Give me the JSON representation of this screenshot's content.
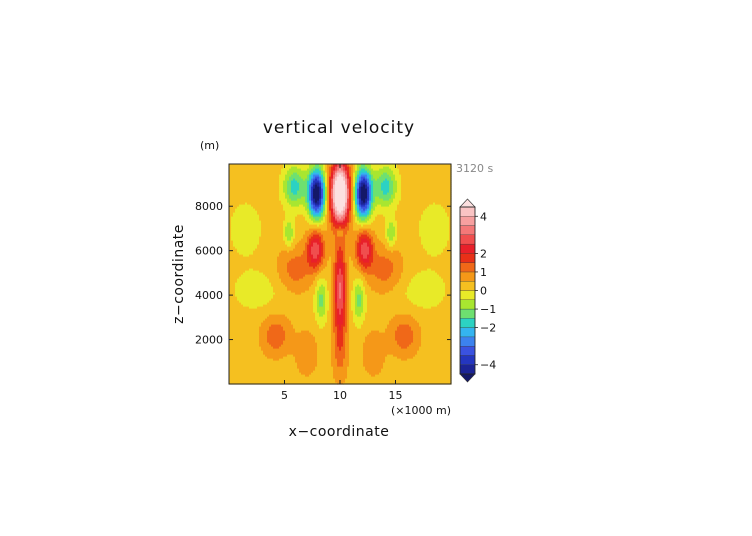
{
  "chart_data": {
    "type": "heatmap",
    "title": "vertical velocity",
    "time_label": "3120 s",
    "xlabel": "x−coordinate",
    "ylabel": "z−coordinate",
    "x_unit": "(×1000 m)",
    "y_unit": "(m)",
    "xlim": [
      0,
      20
    ],
    "ylim": [
      0,
      9900
    ],
    "x_ticks": [
      5,
      10,
      15
    ],
    "x_tick_labels": [
      "5",
      "10",
      "15"
    ],
    "y_ticks": [
      2000,
      4000,
      6000,
      8000
    ],
    "y_tick_labels": [
      "2000",
      "4000",
      "6000",
      "8000"
    ],
    "colorbar": {
      "levels": [
        -5,
        -4.5,
        -4,
        -3.5,
        -3,
        -2.5,
        -2,
        -1.5,
        -1,
        -0.5,
        0,
        0.5,
        1,
        1.5,
        2,
        2.5,
        3,
        3.5,
        4,
        4.5,
        5
      ],
      "colors": [
        "#141868",
        "#1c2496",
        "#2436c0",
        "#3a52e0",
        "#3c82ee",
        "#34b4f0",
        "#2cd2c2",
        "#6ee070",
        "#a8e630",
        "#e8ea28",
        "#f5c020",
        "#f59818",
        "#f06818",
        "#e83018",
        "#e8202a",
        "#f04e4e",
        "#f47878",
        "#f7a0a0",
        "#fac4c4",
        "#fce0e0"
      ],
      "tick_values": [
        -4,
        -2,
        -1,
        0,
        1,
        2,
        4
      ],
      "tick_labels": [
        "−4",
        "−2",
        "−1",
        "0",
        "1",
        "2",
        "4"
      ]
    },
    "field_description": "Vertical velocity w(x,z) in m/s; the values are sampled from a smooth analytic field the script builds",
    "features": [
      {
        "kind": "updraft_core",
        "x": 10.0,
        "z": 8400,
        "w": 5.0
      },
      {
        "kind": "updraft_column",
        "x": 10.0,
        "z": 4200,
        "w": 2.5
      },
      {
        "kind": "downdraft",
        "x": 8.0,
        "z": 8500,
        "w": -4.6
      },
      {
        "kind": "downdraft",
        "x": 12.0,
        "z": 8500,
        "w": -4.6
      },
      {
        "kind": "positive_lobe",
        "x": 7.8,
        "z": 6000,
        "w": 2.2
      },
      {
        "kind": "positive_lobe",
        "x": 12.2,
        "z": 6000,
        "w": 2.2
      },
      {
        "kind": "negative_lobe",
        "x": 8.3,
        "z": 3800,
        "w": -1.2
      },
      {
        "kind": "negative_lobe",
        "x": 11.7,
        "z": 3800,
        "w": -1.2
      }
    ]
  }
}
